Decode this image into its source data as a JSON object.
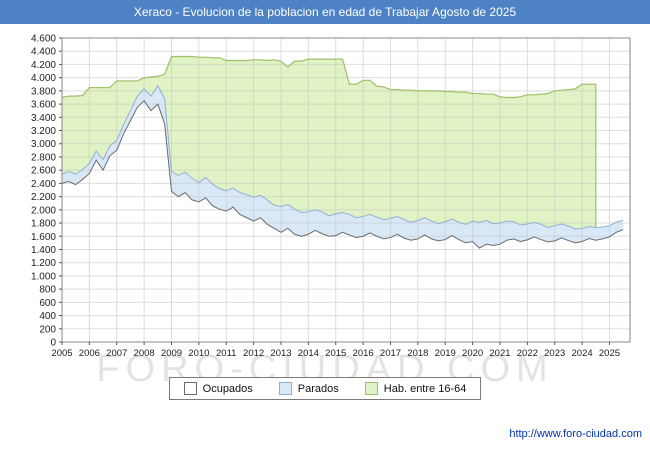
{
  "title": "Xeraco - Evolucion de la poblacion en edad de Trabajar Agosto de 2025",
  "watermark": "FORO-CIUDAD.COM",
  "footer": {
    "url": "http://www.foro-ciudad.com"
  },
  "colors": {
    "title_bar": "#4d82c4",
    "ocupados_fill": "#ffffff",
    "ocupados_stroke": "#6b6b6b",
    "parados_fill": "#d9e8f7",
    "parados_stroke": "#8fb2d4",
    "hab_fill": "#e1f2c4",
    "hab_stroke": "#9cc168",
    "grid": "#c8c8c8",
    "plot_border": "#888888",
    "axis_text": "#222222"
  },
  "legend": {
    "items": [
      {
        "key": "ocupados",
        "label": "Ocupados"
      },
      {
        "key": "parados",
        "label": "Parados"
      },
      {
        "key": "hab",
        "label": "Hab. entre 16-64"
      }
    ]
  },
  "chart_data": {
    "type": "area",
    "title": "Xeraco - Evolucion de la poblacion en edad de Trabajar Agosto de 2025",
    "xlabel": "",
    "ylabel": "",
    "x_start": 2005,
    "x_step": 0.25,
    "x_range": [
      2005,
      2025.75
    ],
    "ylim": [
      0,
      4600
    ],
    "y_tick_step": 200,
    "y_tick_labels": [
      "0",
      "200",
      "400",
      "600",
      "800",
      "1.000",
      "1.200",
      "1.400",
      "1.600",
      "1.800",
      "2.000",
      "2.200",
      "2.400",
      "2.600",
      "2.800",
      "3.000",
      "3.200",
      "3.400",
      "3.600",
      "3.800",
      "4.000",
      "4.200",
      "4.400",
      "4.600"
    ],
    "x_tick_labels": [
      "2005",
      "2006",
      "2007",
      "2008",
      "2009",
      "2010",
      "2011",
      "2012",
      "2013",
      "2014",
      "2015",
      "2016",
      "2017",
      "2018",
      "2019",
      "2020",
      "2021",
      "2022",
      "2023",
      "2024",
      "2025"
    ],
    "legend_position": "bottom",
    "grid": true,
    "series": [
      {
        "name": "Ocupados",
        "values": [
          2400,
          2430,
          2380,
          2460,
          2550,
          2750,
          2600,
          2820,
          2900,
          3150,
          3350,
          3550,
          3650,
          3500,
          3600,
          3300,
          2280,
          2200,
          2260,
          2150,
          2120,
          2180,
          2060,
          2010,
          1980,
          2040,
          1930,
          1880,
          1830,
          1880,
          1780,
          1720,
          1660,
          1720,
          1630,
          1600,
          1630,
          1690,
          1640,
          1600,
          1610,
          1660,
          1620,
          1580,
          1600,
          1650,
          1600,
          1560,
          1580,
          1630,
          1570,
          1540,
          1560,
          1620,
          1560,
          1530,
          1550,
          1610,
          1550,
          1500,
          1520,
          1420,
          1480,
          1460,
          1480,
          1540,
          1560,
          1520,
          1545,
          1590,
          1550,
          1515,
          1530,
          1575,
          1535,
          1500,
          1520,
          1565,
          1540,
          1560,
          1590,
          1660,
          1700
        ]
      },
      {
        "name": "Parados",
        "stacked_on": "Ocupados",
        "values": [
          140,
          150,
          160,
          150,
          150,
          140,
          160,
          150,
          150,
          140,
          150,
          170,
          180,
          220,
          280,
          380,
          300,
          320,
          310,
          330,
          290,
          310,
          330,
          310,
          310,
          290,
          330,
          350,
          360,
          340,
          370,
          350,
          390,
          360,
          380,
          360,
          340,
          310,
          330,
          310,
          330,
          300,
          310,
          300,
          300,
          280,
          290,
          290,
          290,
          270,
          280,
          270,
          280,
          260,
          270,
          260,
          270,
          250,
          260,
          280,
          310,
          390,
          360,
          330,
          320,
          290,
          260,
          250,
          240,
          220,
          230,
          220,
          230,
          210,
          220,
          210,
          200,
          185,
          190,
          180,
          170,
          155,
          145
        ]
      },
      {
        "name": "Hab. entre 16-64",
        "values": [
          3700,
          3720,
          3720,
          3730,
          3850,
          3850,
          3850,
          3850,
          3950,
          3950,
          3950,
          3950,
          4000,
          4010,
          4020,
          4050,
          4320,
          4320,
          4320,
          4320,
          4310,
          4310,
          4300,
          4300,
          4260,
          4260,
          4260,
          4260,
          4270,
          4270,
          4260,
          4270,
          4250,
          4160,
          4250,
          4250,
          4280,
          4280,
          4280,
          4280,
          4280,
          4280,
          3900,
          3900,
          3960,
          3960,
          3870,
          3860,
          3820,
          3820,
          3810,
          3810,
          3800,
          3800,
          3800,
          3800,
          3790,
          3790,
          3780,
          3780,
          3760,
          3760,
          3750,
          3750,
          3710,
          3700,
          3700,
          3710,
          3740,
          3740,
          3750,
          3760,
          3800,
          3810,
          3820,
          3830,
          3900,
          3900,
          3900
        ]
      }
    ]
  }
}
